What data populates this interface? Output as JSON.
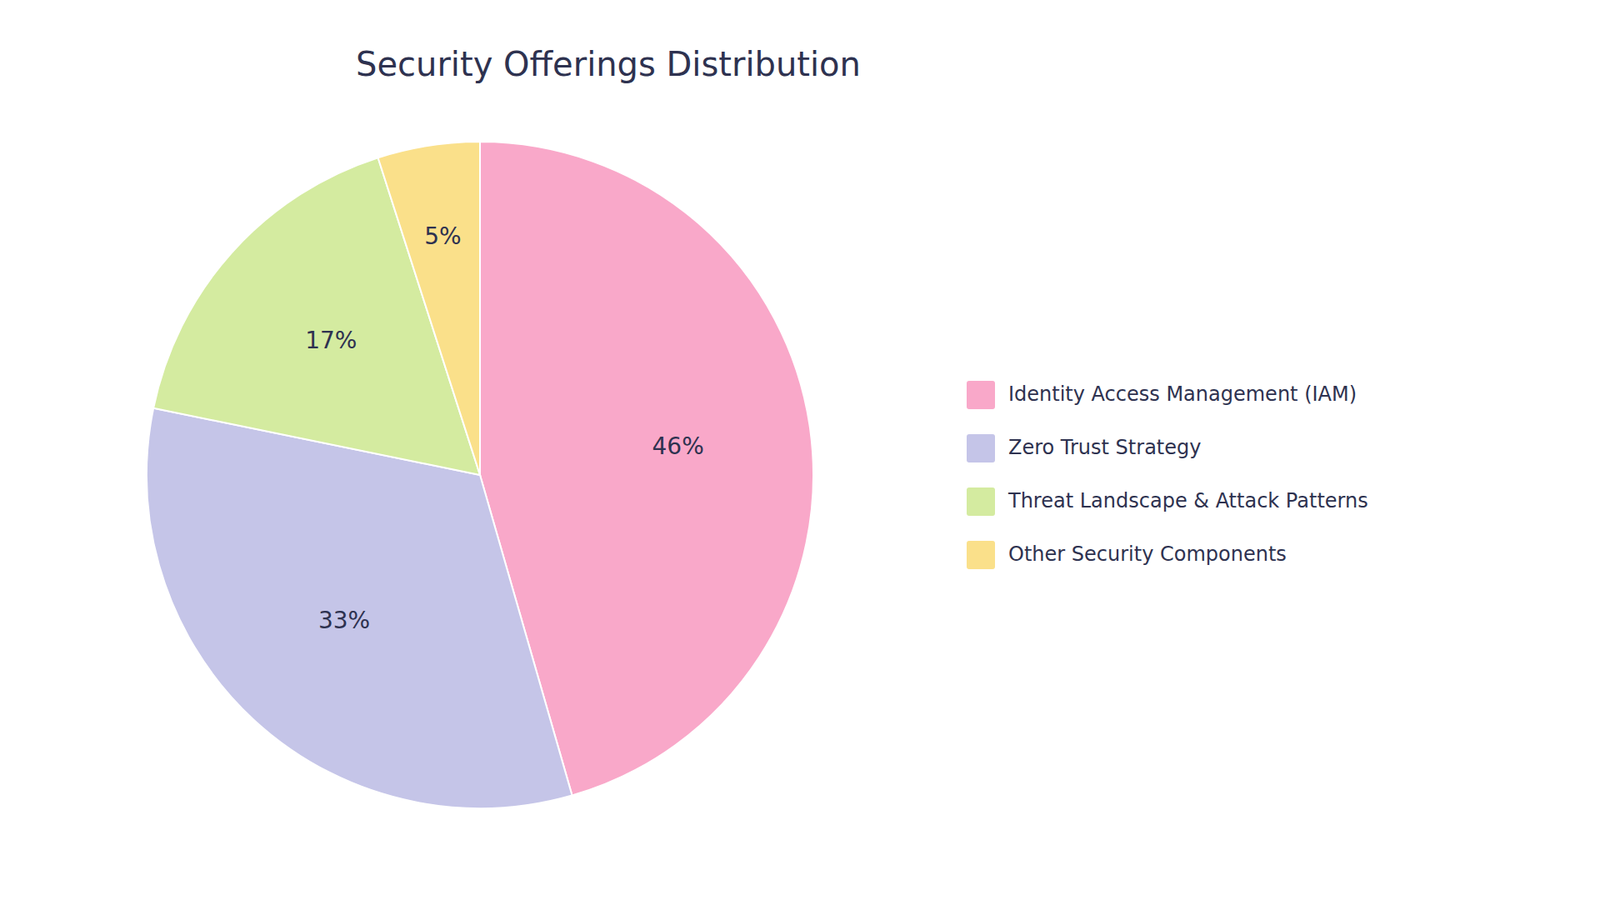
{
  "chart_data": {
    "type": "pie",
    "title": "Security Offerings Distribution",
    "categories": [
      "Identity Access Management (IAM)",
      "Zero Trust Strategy",
      "Threat Landscape & Attack Patterns",
      "Other Security Components"
    ],
    "values": [
      46,
      33,
      17,
      5
    ],
    "value_labels": [
      "46%",
      "33%",
      "17%",
      "5%"
    ],
    "colors": [
      "#F9A8C9",
      "#C5C5E8",
      "#D4EBA0",
      "#FAE08A"
    ],
    "data_labels": true,
    "legend": "right"
  }
}
